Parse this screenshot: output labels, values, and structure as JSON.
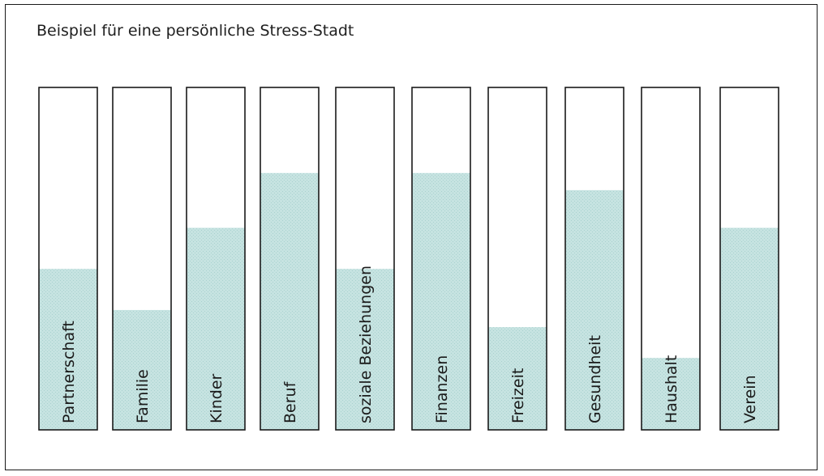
{
  "chart_data": {
    "type": "bar",
    "title": "Beispiel für eine persönliche Stress-Stadt",
    "categories": [
      "Partnerschaft",
      "Familie",
      "Kinder",
      "Beruf",
      "soziale Beziehungen",
      "Finanzen",
      "Freizeit",
      "Gesundheit",
      "Haushalt",
      "Verein"
    ],
    "values": [
      47,
      35,
      59,
      75,
      47,
      75,
      30,
      70,
      21,
      59
    ],
    "ylim": [
      0,
      100
    ],
    "xlabel": "",
    "ylabel": "",
    "grid": false,
    "fill_color": "#c6e3e1",
    "hatch_color": "#a9d2cf",
    "outline_color": "#1a1a1a"
  }
}
